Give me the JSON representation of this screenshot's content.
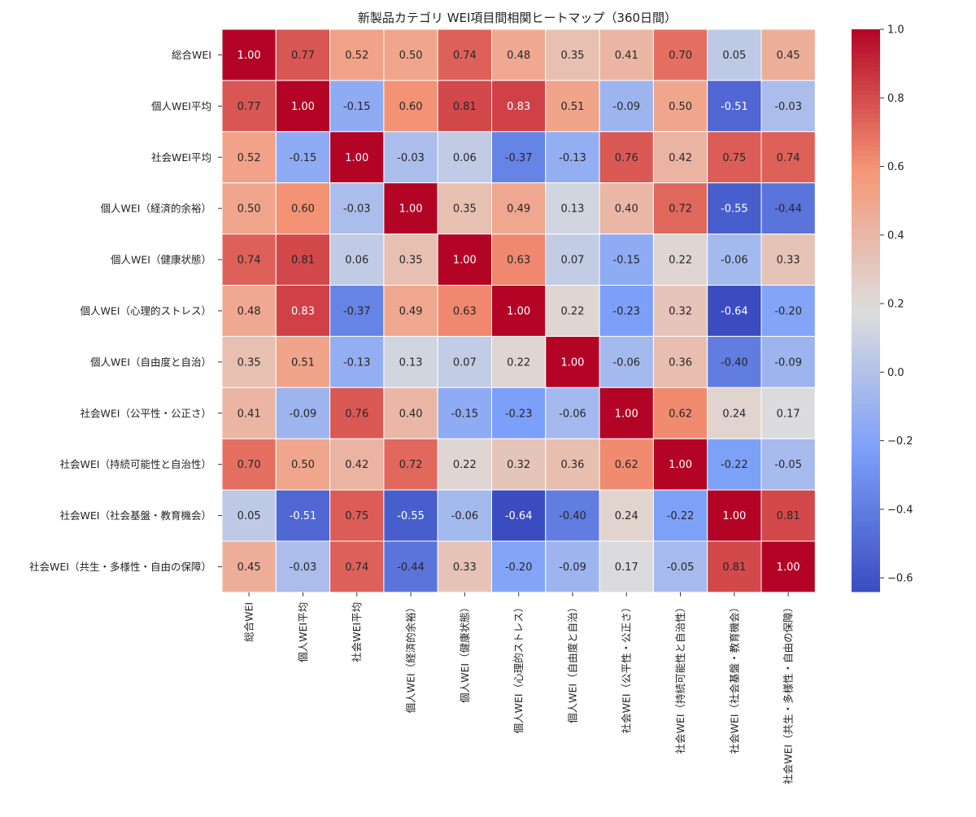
{
  "chart_data": {
    "type": "heatmap",
    "title": "新製品カテゴリ WEI項目間相関ヒートマップ（360日間）",
    "xlabel": "",
    "ylabel": "",
    "labels": [
      "総合WEI",
      "個人WEI平均",
      "社会WEI平均",
      "個人WEI（経済的余裕）",
      "個人WEI（健康状態）",
      "個人WEI（心理的ストレス）",
      "個人WEI（自由度と自治）",
      "社会WEI（公平性・公正さ）",
      "社会WEI（持続可能性と自治性）",
      "社会WEI（社会基盤・教育機会）",
      "社会WEI（共生・多様性・自由の保障）"
    ],
    "matrix": [
      [
        1.0,
        0.77,
        0.52,
        0.5,
        0.74,
        0.48,
        0.35,
        0.41,
        0.7,
        0.05,
        0.45
      ],
      [
        0.77,
        1.0,
        -0.15,
        0.6,
        0.81,
        0.83,
        0.51,
        -0.09,
        0.5,
        -0.51,
        -0.03
      ],
      [
        0.52,
        -0.15,
        1.0,
        -0.03,
        0.06,
        -0.37,
        -0.13,
        0.76,
        0.42,
        0.75,
        0.74
      ],
      [
        0.5,
        0.6,
        -0.03,
        1.0,
        0.35,
        0.49,
        0.13,
        0.4,
        0.72,
        -0.55,
        -0.44
      ],
      [
        0.74,
        0.81,
        0.06,
        0.35,
        1.0,
        0.63,
        0.07,
        -0.15,
        0.22,
        -0.06,
        0.33
      ],
      [
        0.48,
        0.83,
        -0.37,
        0.49,
        0.63,
        1.0,
        0.22,
        -0.23,
        0.32,
        -0.64,
        -0.2
      ],
      [
        0.35,
        0.51,
        -0.13,
        0.13,
        0.07,
        0.22,
        1.0,
        -0.06,
        0.36,
        -0.4,
        -0.09
      ],
      [
        0.41,
        -0.09,
        0.76,
        0.4,
        -0.15,
        -0.23,
        -0.06,
        1.0,
        0.62,
        0.24,
        0.17
      ],
      [
        0.7,
        0.5,
        0.42,
        0.72,
        0.22,
        0.32,
        0.36,
        0.62,
        1.0,
        -0.22,
        -0.05
      ],
      [
        0.05,
        -0.51,
        0.75,
        -0.55,
        -0.06,
        -0.64,
        -0.4,
        0.24,
        -0.22,
        1.0,
        0.81
      ],
      [
        0.45,
        -0.03,
        0.74,
        -0.44,
        0.33,
        -0.2,
        -0.09,
        0.17,
        -0.05,
        0.81,
        1.0
      ]
    ],
    "value_format": "0.00",
    "colormap": "coolwarm",
    "vmin": -0.64,
    "vmax": 1.0,
    "colorbar_ticks": [
      1.0,
      0.8,
      0.6,
      0.4,
      0.2,
      0.0,
      -0.2,
      -0.4,
      -0.6
    ],
    "colorbar_tick_labels": [
      "1.0",
      "0.8",
      "0.6",
      "0.4",
      "0.2",
      "0.0",
      "−0.2",
      "−0.4",
      "−0.6"
    ]
  }
}
